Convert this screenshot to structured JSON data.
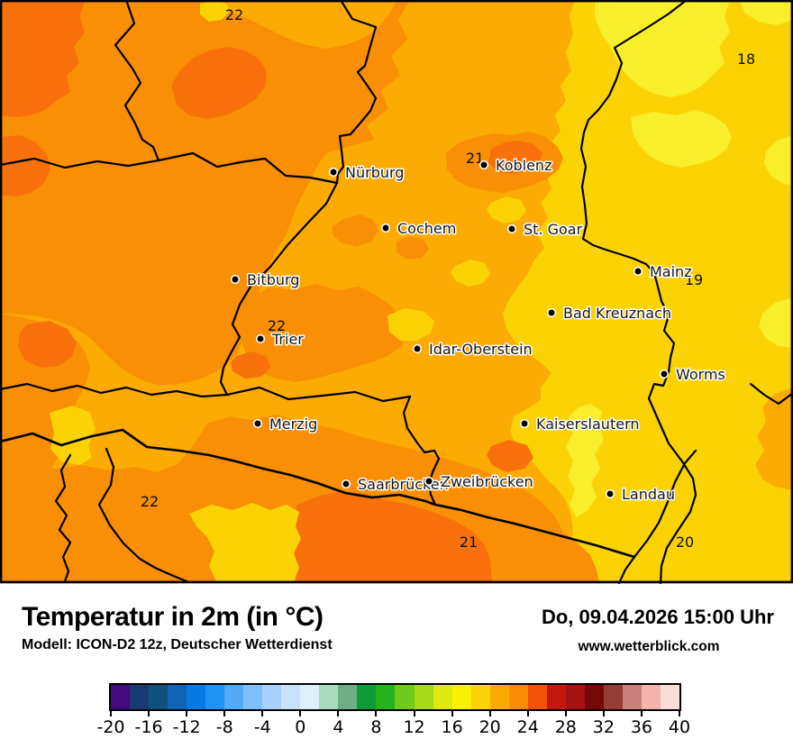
{
  "header": {
    "title": "Temperatur in 2m (in °C)",
    "model_info": "Modell: ICON-D2 12z, Deutscher Wetterdienst",
    "datetime": "Do, 09.04.2026 15:00 Uhr",
    "website": "www.wetterblick.com"
  },
  "palette": {
    "light_orange": "#fcab03",
    "orange": "#f98f04",
    "deep_orange": "#f8710a",
    "golden_yellow": "#fbd304",
    "bright_yellow": "#f8ee2a",
    "border_line": "#000000"
  },
  "map": {
    "cities": [
      {
        "name": "Nürburg"
      },
      {
        "name": "Koblenz"
      },
      {
        "name": "Cochem"
      },
      {
        "name": "St. Goar"
      },
      {
        "name": "Bitburg"
      },
      {
        "name": "Mainz"
      },
      {
        "name": "Bad Kreuznach"
      },
      {
        "name": "Trier"
      },
      {
        "name": "Idar-Oberstein"
      },
      {
        "name": "Worms"
      },
      {
        "name": "Merzig"
      },
      {
        "name": "Kaiserslautern"
      },
      {
        "name": "Saarbrücken"
      },
      {
        "name": "Zweibrücken"
      },
      {
        "name": "Landau"
      }
    ],
    "temperature_readings": [
      "22",
      "18",
      "21",
      "19",
      "22",
      "22",
      "21",
      "20"
    ]
  },
  "colorbar": {
    "unit": "°C",
    "tick_labels": [
      "-20",
      "-16",
      "-12",
      "-8",
      "-4",
      "0",
      "4",
      "8",
      "12",
      "16",
      "20",
      "24",
      "28",
      "32",
      "36",
      "40"
    ],
    "segment_colors": [
      "#45087f",
      "#173a70",
      "#10507c",
      "#1164b4",
      "#0779e2",
      "#2192f7",
      "#53aaf8",
      "#7fc0fb",
      "#a6d2fb",
      "#c8e2fb",
      "#def0fb",
      "#a9dcbd",
      "#6fae85",
      "#0e9b37",
      "#26b31d",
      "#70c91d",
      "#a9da19",
      "#dfe90d",
      "#f8ef03",
      "#fbd304",
      "#fbaa02",
      "#f98d04",
      "#f25209",
      "#c2180e",
      "#a5120f",
      "#750808",
      "#953c35",
      "#ca7f7d",
      "#f5b2ae",
      "#fbdeda"
    ]
  }
}
